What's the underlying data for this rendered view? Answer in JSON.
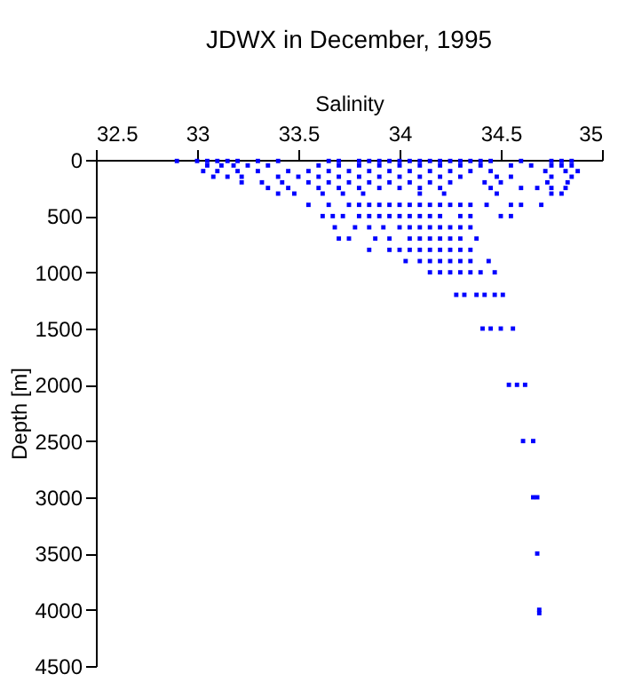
{
  "chart_data": {
    "type": "scatter",
    "title": "JDWX in December, 1995",
    "xlabel": "Salinity",
    "ylabel": "Depth [m]",
    "xlim": [
      32.5,
      35
    ],
    "xticks": [
      32.5,
      33,
      33.5,
      34,
      34.5,
      35
    ],
    "ylim": [
      4500,
      0
    ],
    "yticks": [
      0,
      500,
      1000,
      1500,
      2000,
      2500,
      3000,
      3500,
      4000,
      4500
    ],
    "grid": false,
    "marker": "square",
    "series": [
      {
        "color": "#0000ff",
        "x": [
          32.9,
          33.0,
          33.05,
          33.1,
          33.15,
          33.2,
          33.3,
          33.4,
          33.65,
          33.7,
          33.8,
          33.85,
          33.9,
          33.95,
          34.0,
          34.05,
          34.1,
          34.15,
          34.2,
          34.25,
          34.3,
          34.35,
          34.4,
          34.45,
          34.6,
          34.75,
          34.8,
          34.85,
          33.05,
          33.12,
          33.18,
          33.25,
          33.35,
          33.6,
          33.7,
          33.8,
          33.9,
          34.0,
          34.1,
          34.2,
          34.3,
          34.4,
          34.55,
          34.65,
          34.75,
          34.8,
          34.85,
          33.03,
          33.1,
          33.2,
          33.3,
          33.45,
          33.55,
          33.65,
          33.75,
          33.85,
          33.95,
          34.05,
          34.15,
          34.25,
          34.35,
          34.45,
          34.72,
          34.82,
          34.88,
          33.08,
          33.15,
          33.22,
          33.4,
          33.5,
          33.6,
          33.7,
          33.8,
          33.9,
          34.0,
          34.1,
          34.2,
          34.3,
          34.48,
          34.55,
          34.75,
          34.85,
          33.22,
          33.32,
          33.42,
          33.55,
          33.65,
          33.75,
          33.85,
          33.95,
          34.05,
          34.15,
          34.25,
          34.42,
          34.5,
          34.73,
          34.83,
          33.35,
          33.45,
          33.6,
          33.7,
          33.8,
          33.9,
          34.0,
          34.1,
          34.2,
          34.45,
          34.6,
          34.68,
          34.75,
          34.82,
          33.4,
          33.48,
          33.62,
          33.72,
          33.82,
          34.1,
          34.22,
          34.48,
          34.75,
          34.8,
          33.55,
          33.65,
          33.75,
          33.8,
          33.85,
          33.9,
          33.95,
          34.0,
          34.05,
          34.1,
          34.15,
          34.2,
          34.25,
          34.3,
          34.35,
          34.43,
          34.55,
          34.6,
          34.7,
          33.62,
          33.67,
          33.72,
          33.8,
          33.85,
          33.9,
          33.95,
          34.0,
          34.05,
          34.1,
          34.15,
          34.2,
          34.3,
          34.35,
          34.5,
          34.55,
          33.68,
          33.78,
          33.85,
          33.92,
          34.0,
          34.05,
          34.1,
          34.15,
          34.2,
          34.25,
          34.3,
          34.35,
          33.7,
          33.75,
          33.88,
          33.95,
          34.05,
          34.1,
          34.15,
          34.2,
          34.25,
          34.3,
          34.38,
          33.85,
          33.95,
          34.0,
          34.05,
          34.1,
          34.15,
          34.2,
          34.25,
          34.3,
          34.35,
          34.03,
          34.1,
          34.15,
          34.2,
          34.25,
          34.3,
          34.35,
          34.44,
          34.15,
          34.2,
          34.25,
          34.3,
          34.35,
          34.4,
          34.47,
          34.28,
          34.32,
          34.38,
          34.42,
          34.47,
          34.51,
          34.41,
          34.45,
          34.5,
          34.56,
          34.54,
          34.58,
          34.62,
          34.61,
          34.66,
          34.66,
          34.68,
          34.68,
          34.69,
          34.69
        ],
        "values": [
          10,
          10,
          10,
          10,
          10,
          10,
          10,
          10,
          10,
          10,
          10,
          10,
          10,
          10,
          10,
          10,
          10,
          10,
          10,
          10,
          10,
          10,
          10,
          10,
          10,
          10,
          10,
          10,
          50,
          50,
          50,
          50,
          50,
          50,
          50,
          50,
          50,
          50,
          50,
          50,
          50,
          50,
          50,
          50,
          50,
          50,
          50,
          100,
          100,
          100,
          100,
          100,
          100,
          100,
          100,
          100,
          100,
          100,
          100,
          100,
          100,
          100,
          100,
          100,
          100,
          150,
          150,
          150,
          150,
          150,
          150,
          150,
          150,
          150,
          150,
          150,
          150,
          150,
          150,
          150,
          150,
          150,
          200,
          200,
          200,
          200,
          200,
          200,
          200,
          200,
          200,
          200,
          200,
          200,
          200,
          200,
          200,
          250,
          250,
          250,
          250,
          250,
          250,
          250,
          250,
          250,
          250,
          250,
          250,
          250,
          250,
          300,
          300,
          300,
          300,
          300,
          300,
          300,
          300,
          300,
          300,
          400,
          400,
          400,
          400,
          400,
          400,
          400,
          400,
          400,
          400,
          400,
          400,
          400,
          400,
          400,
          400,
          400,
          400,
          400,
          500,
          500,
          500,
          500,
          500,
          500,
          500,
          500,
          500,
          500,
          500,
          500,
          500,
          500,
          500,
          500,
          600,
          600,
          600,
          600,
          600,
          600,
          600,
          600,
          600,
          600,
          600,
          600,
          700,
          700,
          700,
          700,
          700,
          700,
          700,
          700,
          700,
          700,
          700,
          800,
          800,
          800,
          800,
          800,
          800,
          800,
          800,
          800,
          800,
          900,
          900,
          900,
          900,
          900,
          900,
          900,
          900,
          1000,
          1000,
          1000,
          1000,
          1000,
          1000,
          1000,
          1200,
          1200,
          1200,
          1200,
          1200,
          1200,
          1500,
          1500,
          1500,
          1500,
          2000,
          2000,
          2000,
          2500,
          2500,
          3000,
          3000,
          3500,
          4000,
          4030
        ]
      }
    ]
  }
}
